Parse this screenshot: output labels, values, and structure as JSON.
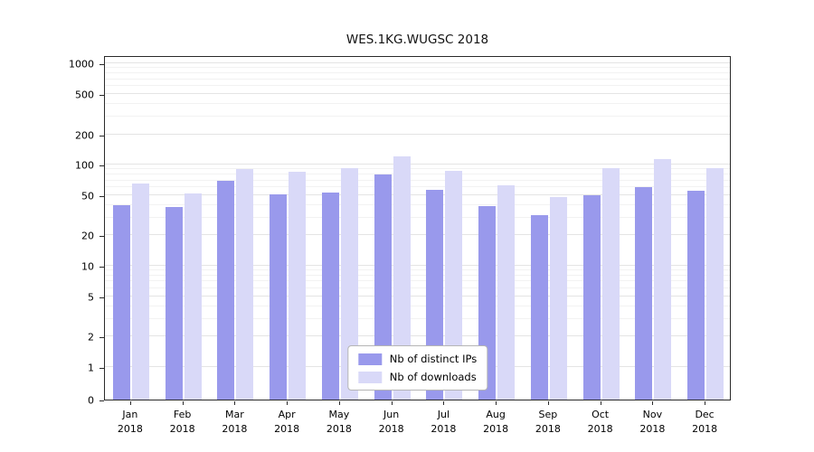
{
  "chart_data": {
    "type": "bar",
    "title": "WES.1KG.WUGSC 2018",
    "categories": [
      "Jan",
      "Feb",
      "Mar",
      "Apr",
      "May",
      "Jun",
      "Jul",
      "Aug",
      "Sep",
      "Oct",
      "Nov",
      "Dec"
    ],
    "x_year_line": "2018",
    "series": [
      {
        "name": "Nb of distinct IPs",
        "color": "#9999ec",
        "values": [
          40,
          38,
          70,
          51,
          53,
          80,
          57,
          39,
          32,
          50,
          60,
          55
        ]
      },
      {
        "name": "Nb of downloads",
        "color": "#d9d9f8",
        "values": [
          65,
          52,
          90,
          85,
          92,
          120,
          87,
          62,
          48,
          93,
          113,
          93
        ]
      }
    ],
    "yscale": "symlog",
    "yticks": [
      0,
      1,
      2,
      5,
      10,
      20,
      50,
      100,
      200,
      500,
      1000
    ],
    "yticks_minor": [
      3,
      4,
      6,
      7,
      8,
      9,
      30,
      40,
      60,
      70,
      80,
      90,
      300,
      400,
      600,
      700,
      800,
      900
    ],
    "ylim": [
      0,
      1300
    ],
    "grid": true,
    "legend_position": "lower center"
  },
  "colors": {
    "background": "#ffffff",
    "grid_major": "#e4e4e4",
    "grid_minor": "#f2f2f2",
    "spine": "#2a2a2a",
    "legend_border": "#b5b5b5",
    "bar_distinct_ips": "#9999ec",
    "bar_downloads": "#d9d9f8"
  }
}
